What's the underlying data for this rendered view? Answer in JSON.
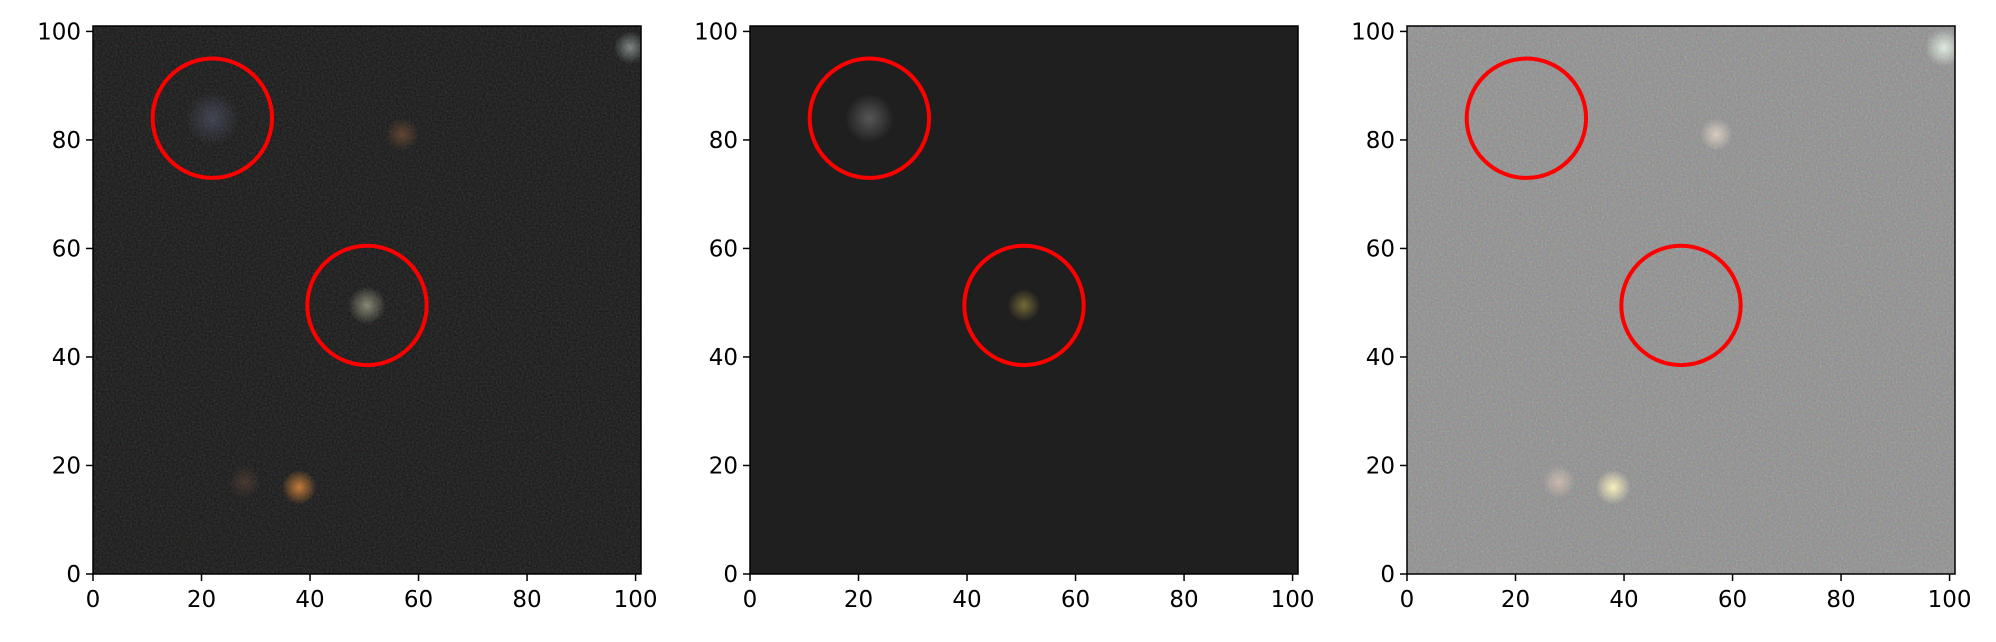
{
  "figure": {
    "panels": [
      {
        "name": "left-panel",
        "background": "#141414",
        "x_ticks": [
          "0",
          "20",
          "40",
          "60",
          "80",
          "100"
        ],
        "y_ticks": [
          "0",
          "20",
          "40",
          "60",
          "80",
          "100"
        ],
        "x_range": [
          0,
          101
        ],
        "y_range": [
          0,
          101
        ],
        "circles": [
          {
            "cx": 22,
            "cy": 84,
            "r": 11,
            "color": "#ff0000"
          },
          {
            "cx": 50.5,
            "cy": 49.5,
            "r": 11,
            "color": "#ff0000"
          }
        ],
        "sources": [
          {
            "x": 22,
            "y": 84,
            "r": 5,
            "color": "#5a5f78",
            "opacity": 0.55
          },
          {
            "x": 50.5,
            "y": 49.5,
            "r": 3.5,
            "color": "#c8c8a8",
            "opacity": 0.6
          },
          {
            "x": 57,
            "y": 81,
            "r": 3,
            "color": "#8a5a3a",
            "opacity": 0.6
          },
          {
            "x": 38,
            "y": 16,
            "r": 3.2,
            "color": "#e08a3c",
            "opacity": 0.85
          },
          {
            "x": 28,
            "y": 17,
            "r": 3,
            "color": "#6a4a3a",
            "opacity": 0.5
          },
          {
            "x": 99,
            "y": 97,
            "r": 3,
            "color": "#d8e8e0",
            "opacity": 0.5
          }
        ]
      },
      {
        "name": "middle-panel",
        "background": "#1f1f1f",
        "x_ticks": [
          "0",
          "20",
          "40",
          "60",
          "80",
          "100"
        ],
        "y_ticks": [
          "0",
          "20",
          "40",
          "60",
          "80",
          "100"
        ],
        "x_range": [
          0,
          101
        ],
        "y_range": [
          0,
          101
        ],
        "circles": [
          {
            "cx": 22,
            "cy": 84,
            "r": 11,
            "color": "#ff0000"
          },
          {
            "cx": 50.5,
            "cy": 49.5,
            "r": 11,
            "color": "#ff0000"
          }
        ],
        "sources": [
          {
            "x": 22,
            "y": 84,
            "r": 4.5,
            "color": "#6a6a6a",
            "opacity": 0.75
          },
          {
            "x": 50.5,
            "y": 49.5,
            "r": 3,
            "color": "#8a7d40",
            "opacity": 0.8
          }
        ]
      },
      {
        "name": "right-panel",
        "background": "#8c8c8c",
        "x_ticks": [
          "0",
          "20",
          "40",
          "60",
          "80",
          "100"
        ],
        "y_ticks": [
          "0",
          "20",
          "40",
          "60",
          "80",
          "100"
        ],
        "x_range": [
          0,
          101
        ],
        "y_range": [
          0,
          101
        ],
        "circles": [
          {
            "cx": 22,
            "cy": 84,
            "r": 11,
            "color": "#ff0000"
          },
          {
            "cx": 50.5,
            "cy": 49.5,
            "r": 11,
            "color": "#ff0000"
          }
        ],
        "sources": [
          {
            "x": 57,
            "y": 81,
            "r": 3,
            "color": "#e8d8c8",
            "opacity": 0.8
          },
          {
            "x": 38,
            "y": 16,
            "r": 3.2,
            "color": "#fff4c0",
            "opacity": 0.95
          },
          {
            "x": 28,
            "y": 17,
            "r": 3,
            "color": "#e0c8b8",
            "opacity": 0.7
          },
          {
            "x": 99,
            "y": 97,
            "r": 3.5,
            "color": "#f0fff0",
            "opacity": 0.8
          }
        ]
      }
    ]
  }
}
